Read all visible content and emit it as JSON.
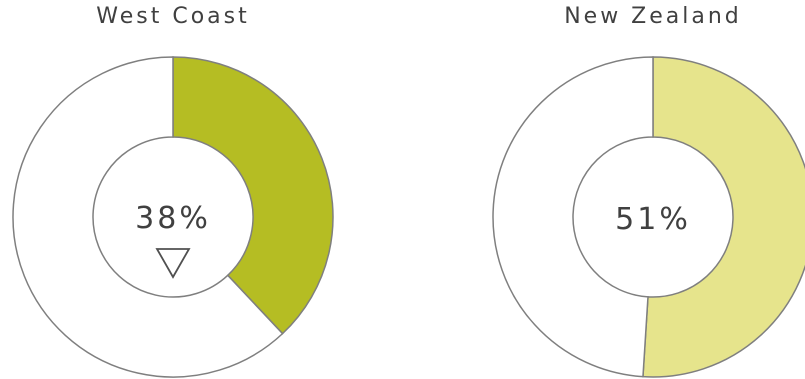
{
  "chart_data": [
    {
      "type": "donut",
      "title": "West Coast",
      "value_percent": 38,
      "center_label": "38%",
      "indicator": "down-triangle",
      "colors": {
        "value": "#b5bd23",
        "remainder": "#ffffff",
        "stroke": "#7f7f7f"
      }
    },
    {
      "type": "donut",
      "title": "New Zealand",
      "value_percent": 51,
      "center_label": "51%",
      "colors": {
        "value": "#e6e48c",
        "remainder": "#ffffff",
        "stroke": "#7f7f7f"
      }
    }
  ]
}
